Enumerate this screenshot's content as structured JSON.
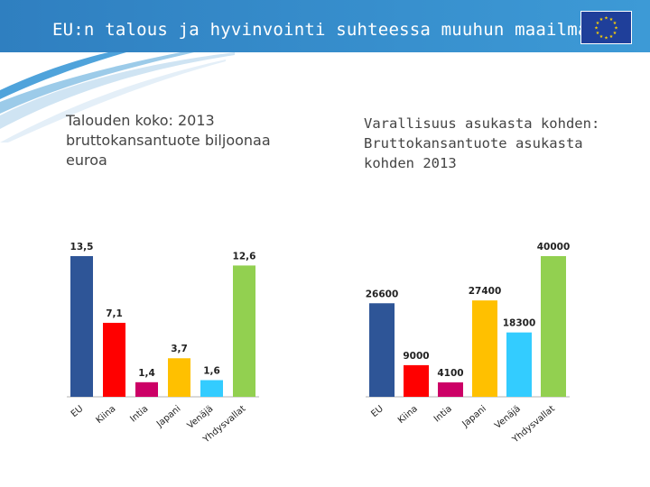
{
  "header": {
    "title": "EU:n talous ja hyvinvointi suhteessa muuhun maailmaan",
    "flag_icon": "eu-flag-icon",
    "colors": {
      "header": "#3d9ad6",
      "flag": "#1f3f9a",
      "stars": "#ffd200"
    }
  },
  "chart_data": [
    {
      "type": "bar",
      "title": "Talouden koko: 2013 bruttokansantuote biljoonaa euroa",
      "title_lines": [
        "Talouden koko: 2013",
        "bruttokansantuote biljoonaa",
        "euroa"
      ],
      "categories": [
        "EU",
        "Kiina",
        "Intia",
        "Japani",
        "Venäjä",
        "Yhdysvallat"
      ],
      "values": [
        13.5,
        7.1,
        1.4,
        3.7,
        1.6,
        12.6
      ],
      "value_labels": [
        "13,5",
        "7,1",
        "1,4",
        "3,7",
        "1,6",
        "12,6"
      ],
      "colors": [
        "#2e5597",
        "#ff0000",
        "#cc0066",
        "#ffc000",
        "#33ccff",
        "#92d050"
      ],
      "ylim": [
        0,
        13.5
      ],
      "xlabel": "",
      "ylabel": ""
    },
    {
      "type": "bar",
      "title": "Varallisuus asukasta kohden: Bruttokansantuote asukasta kohden 2013",
      "title_lines": [
        "Varallisuus asukasta kohden:",
        "Bruttokansantuote asukasta",
        "kohden 2013"
      ],
      "categories": [
        "EU",
        "Kiina",
        "Intia",
        "Japani",
        "Venäjä",
        "Yhdysvallat"
      ],
      "values": [
        26600,
        9000,
        4100,
        27400,
        18300,
        40000
      ],
      "value_labels": [
        "26600",
        "9000",
        "4100",
        "27400",
        "18300",
        "40000"
      ],
      "colors": [
        "#2e5597",
        "#ff0000",
        "#cc0066",
        "#ffc000",
        "#33ccff",
        "#92d050"
      ],
      "ylim": [
        0,
        40000
      ],
      "xlabel": "",
      "ylabel": ""
    }
  ]
}
